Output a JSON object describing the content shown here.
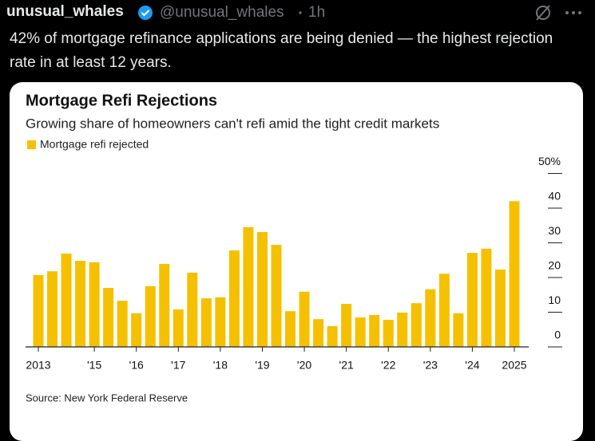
{
  "tweet": {
    "author": "unusual_whales",
    "handle": "@unusual_whales",
    "time": "1h",
    "text": "42% of mortgage refinance applications are being denied — the highest rejection rate in at least 12 years."
  },
  "chart_data": {
    "type": "bar",
    "title": "Mortgage Refi Rejections",
    "subtitle": "Growing share of homeowners can't refi amid the tight credit markets",
    "source": "Source: New York Federal Reserve",
    "categories": [
      "2013",
      null,
      null,
      null,
      "'15",
      null,
      null,
      "'16",
      null,
      null,
      "'17",
      null,
      null,
      "'18",
      null,
      null,
      "'19",
      null,
      null,
      "'20",
      null,
      null,
      "'21",
      null,
      null,
      "'22",
      null,
      null,
      "'23",
      null,
      null,
      "'24",
      null,
      null,
      "2025"
    ],
    "series": [
      {
        "name": "Mortgage refi rejected",
        "color": "#f5c000",
        "values": [
          20.7,
          21.8,
          26.9,
          24.8,
          24.4,
          17.0,
          13.3,
          9.7,
          17.5,
          23.9,
          10.8,
          21.4,
          14.0,
          14.3,
          27.8,
          34.5,
          33.1,
          29.4,
          10.3,
          15.9,
          8.0,
          6.0,
          12.4,
          8.5,
          9.2,
          7.8,
          9.9,
          12.6,
          16.6,
          21.1,
          9.7,
          27.1,
          28.3,
          22.3,
          42
        ]
      }
    ],
    "ylim": [
      0,
      50
    ],
    "yticks": [
      0,
      10,
      20,
      30,
      40,
      {
        "value": 50,
        "label": "50%"
      }
    ],
    "legend": "top-left"
  }
}
